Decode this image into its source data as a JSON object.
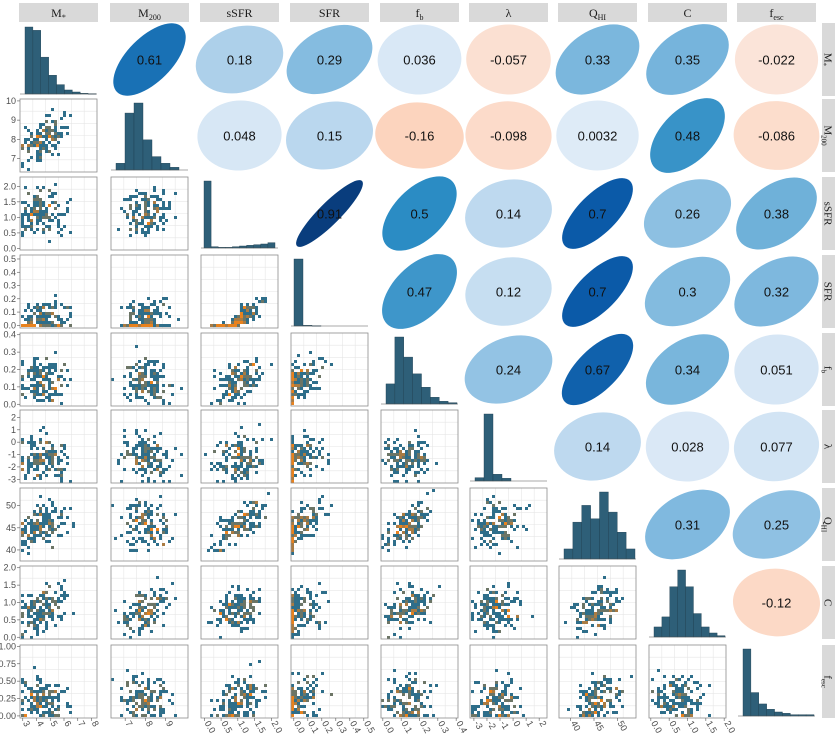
{
  "variables": [
    "M*",
    "M200",
    "sSFR",
    "SFR",
    "fb",
    "λ",
    "QHI",
    "C",
    "fesc"
  ],
  "headers": [
    {
      "base": "M",
      "sub": "*"
    },
    {
      "base": "M",
      "sub": "200"
    },
    {
      "base": "sSFR",
      "sub": ""
    },
    {
      "base": "SFR",
      "sub": ""
    },
    {
      "base": "f",
      "sub": "b"
    },
    {
      "base": "λ",
      "sub": ""
    },
    {
      "base": "Q",
      "sub": "HI"
    },
    {
      "base": "C",
      "sub": ""
    },
    {
      "base": "f",
      "sub": "esc"
    }
  ],
  "colors": {
    "strip_bg": "#d9d9d9",
    "hist_fill": "#2e5f78",
    "density_low": "#2e6e8a",
    "density_high": "#e8821e",
    "grid": "#e6e6e6",
    "panel_border": "#8c8c8c",
    "tick_text": "#4d4d4d"
  },
  "chart_data": {
    "type": "pairs",
    "correlations": [
      {
        "row": 0,
        "col": 1,
        "label": "0.61",
        "value": 0.61
      },
      {
        "row": 0,
        "col": 2,
        "label": "0.18",
        "value": 0.18
      },
      {
        "row": 0,
        "col": 3,
        "label": "0.29",
        "value": 0.29
      },
      {
        "row": 0,
        "col": 4,
        "label": "0.036",
        "value": 0.036
      },
      {
        "row": 0,
        "col": 5,
        "label": "-0.057",
        "value": -0.057
      },
      {
        "row": 0,
        "col": 6,
        "label": "0.33",
        "value": 0.33
      },
      {
        "row": 0,
        "col": 7,
        "label": "0.35",
        "value": 0.35
      },
      {
        "row": 0,
        "col": 8,
        "label": "-0.022",
        "value": -0.022
      },
      {
        "row": 1,
        "col": 2,
        "label": "0.048",
        "value": 0.048
      },
      {
        "row": 1,
        "col": 3,
        "label": "0.15",
        "value": 0.15
      },
      {
        "row": 1,
        "col": 4,
        "label": "-0.16",
        "value": -0.16
      },
      {
        "row": 1,
        "col": 5,
        "label": "-0.098",
        "value": -0.098
      },
      {
        "row": 1,
        "col": 6,
        "label": "0.0032",
        "value": 0.0032
      },
      {
        "row": 1,
        "col": 7,
        "label": "0.48",
        "value": 0.48
      },
      {
        "row": 1,
        "col": 8,
        "label": "-0.086",
        "value": -0.086
      },
      {
        "row": 2,
        "col": 3,
        "label": "0.91",
        "value": 0.91
      },
      {
        "row": 2,
        "col": 4,
        "label": "0.5",
        "value": 0.5
      },
      {
        "row": 2,
        "col": 5,
        "label": "0.14",
        "value": 0.14
      },
      {
        "row": 2,
        "col": 6,
        "label": "0.7",
        "value": 0.7
      },
      {
        "row": 2,
        "col": 7,
        "label": "0.26",
        "value": 0.26
      },
      {
        "row": 2,
        "col": 8,
        "label": "0.38",
        "value": 0.38
      },
      {
        "row": 3,
        "col": 4,
        "label": "0.47",
        "value": 0.47
      },
      {
        "row": 3,
        "col": 5,
        "label": "0.12",
        "value": 0.12
      },
      {
        "row": 3,
        "col": 6,
        "label": "0.7",
        "value": 0.7
      },
      {
        "row": 3,
        "col": 7,
        "label": "0.3",
        "value": 0.3
      },
      {
        "row": 3,
        "col": 8,
        "label": "0.32",
        "value": 0.32
      },
      {
        "row": 4,
        "col": 5,
        "label": "0.24",
        "value": 0.24
      },
      {
        "row": 4,
        "col": 6,
        "label": "0.67",
        "value": 0.67
      },
      {
        "row": 4,
        "col": 7,
        "label": "0.34",
        "value": 0.34
      },
      {
        "row": 4,
        "col": 8,
        "label": "0.051",
        "value": 0.051
      },
      {
        "row": 5,
        "col": 6,
        "label": "0.14",
        "value": 0.14
      },
      {
        "row": 5,
        "col": 7,
        "label": "0.028",
        "value": 0.028
      },
      {
        "row": 5,
        "col": 8,
        "label": "0.077",
        "value": 0.077
      },
      {
        "row": 6,
        "col": 7,
        "label": "0.31",
        "value": 0.31
      },
      {
        "row": 6,
        "col": 8,
        "label": "0.25",
        "value": 0.25
      },
      {
        "row": 7,
        "col": 8,
        "label": "-0.12",
        "value": -0.12
      }
    ],
    "histograms": [
      [
        1,
        0.95,
        0.55,
        0.28,
        0.14,
        0.06,
        0.03,
        0.01,
        0.005
      ],
      [
        0.1,
        0.85,
        1,
        0.45,
        0.2,
        0.1,
        0.04
      ],
      [
        1,
        0.02,
        0.01,
        0.01,
        0.02,
        0.03,
        0.04,
        0.05,
        0.06,
        0.08
      ],
      [
        1,
        0.01,
        0.005
      ],
      [
        0.3,
        1,
        0.7,
        0.45,
        0.25,
        0.1,
        0.04,
        0.02
      ],
      [
        0.05,
        1,
        0.1,
        0.04
      ],
      [
        0.15,
        0.55,
        0.8,
        0.6,
        1,
        0.7,
        0.4,
        0.15
      ],
      [
        0.15,
        0.3,
        0.75,
        1,
        0.75,
        0.35,
        0.15,
        0.06,
        0.02
      ],
      [
        1,
        0.35,
        0.18,
        0.1,
        0.06,
        0.04,
        0.02,
        0.02,
        0.02
      ]
    ],
    "y_axes": [
      {
        "row": 1,
        "ticks": [
          "7",
          "8",
          "9",
          "10"
        ],
        "positions": [
          7,
          8,
          9,
          10
        ],
        "range": [
          6.3,
          10.1
        ]
      },
      {
        "row": 2,
        "ticks": [
          "0.0",
          "0.5",
          "1.0",
          "1.5",
          "2.0"
        ],
        "positions": [
          0,
          0.5,
          1,
          1.5,
          2
        ],
        "range": [
          -0.05,
          2.3
        ]
      },
      {
        "row": 3,
        "ticks": [
          "0.0",
          "0.1",
          "0.2",
          "0.3",
          "0.4",
          "0.5"
        ],
        "positions": [
          0,
          0.1,
          0.2,
          0.3,
          0.4,
          0.5
        ],
        "range": [
          -0.02,
          0.53
        ]
      },
      {
        "row": 4,
        "ticks": [
          "0.0",
          "0.1",
          "0.2",
          "0.3",
          "0.4"
        ],
        "positions": [
          0,
          0.1,
          0.2,
          0.3,
          0.4
        ],
        "range": [
          -0.01,
          0.41
        ]
      },
      {
        "row": 5,
        "ticks": [
          "-3",
          "-2",
          "-1",
          "0",
          "1",
          "2"
        ],
        "positions": [
          -3,
          -2,
          -1,
          0,
          1,
          2
        ],
        "range": [
          -3.3,
          2.6
        ]
      },
      {
        "row": 6,
        "ticks": [
          "40",
          "45",
          "50"
        ],
        "positions": [
          40,
          45,
          50
        ],
        "range": [
          37.5,
          54
        ]
      },
      {
        "row": 7,
        "ticks": [
          "0.0",
          "0.5",
          "1.0",
          "1.5",
          "2.0"
        ],
        "positions": [
          0,
          0.5,
          1,
          1.5,
          2
        ],
        "range": [
          -0.05,
          2.05
        ]
      },
      {
        "row": 8,
        "ticks": [
          "0.00",
          "0.25",
          "0.50",
          "0.75",
          "1.00"
        ],
        "positions": [
          0,
          0.25,
          0.5,
          0.75,
          1
        ],
        "range": [
          -0.03,
          1.02
        ]
      }
    ],
    "x_axes": [
      {
        "col": 0,
        "ticks": [
          "3",
          "4",
          "5",
          "6",
          "7",
          "8"
        ],
        "positions": [
          3,
          4,
          5,
          6,
          7,
          8
        ],
        "range": [
          2.8,
          8.4
        ]
      },
      {
        "col": 1,
        "ticks": [
          "7",
          "8",
          "9"
        ],
        "positions": [
          7,
          8,
          9
        ],
        "range": [
          6.3,
          10.1
        ]
      },
      {
        "col": 2,
        "ticks": [
          "0.0",
          "0.5",
          "1.0",
          "1.5",
          "2.0"
        ],
        "positions": [
          0,
          0.5,
          1,
          1.5,
          2
        ],
        "range": [
          -0.1,
          2.2
        ]
      },
      {
        "col": 3,
        "ticks": [
          "0.0",
          "0.1",
          "0.2",
          "0.3",
          "0.4",
          "0.5"
        ],
        "positions": [
          0,
          0.1,
          0.2,
          0.3,
          0.4,
          0.5
        ],
        "range": [
          -0.02,
          0.53
        ]
      },
      {
        "col": 4,
        "ticks": [
          "0.0",
          "0.1",
          "0.2",
          "0.3",
          "0.4"
        ],
        "positions": [
          0,
          0.1,
          0.2,
          0.3,
          0.4
        ],
        "range": [
          -0.01,
          0.41
        ]
      },
      {
        "col": 5,
        "ticks": [
          "-3",
          "-2",
          "-1",
          "0",
          "1",
          "2"
        ],
        "positions": [
          -3,
          -2,
          -1,
          0,
          1,
          2
        ],
        "range": [
          -3.3,
          2.6
        ]
      },
      {
        "col": 6,
        "ticks": [
          "40",
          "45",
          "50"
        ],
        "positions": [
          40,
          45,
          50
        ],
        "range": [
          37.5,
          54
        ]
      },
      {
        "col": 7,
        "ticks": [
          "0.0",
          "0.5",
          "1.0",
          "1.5",
          "2.0"
        ],
        "positions": [
          0,
          0.5,
          1,
          1.5,
          2
        ],
        "range": [
          -0.05,
          2.05
        ]
      }
    ],
    "grid": true
  }
}
